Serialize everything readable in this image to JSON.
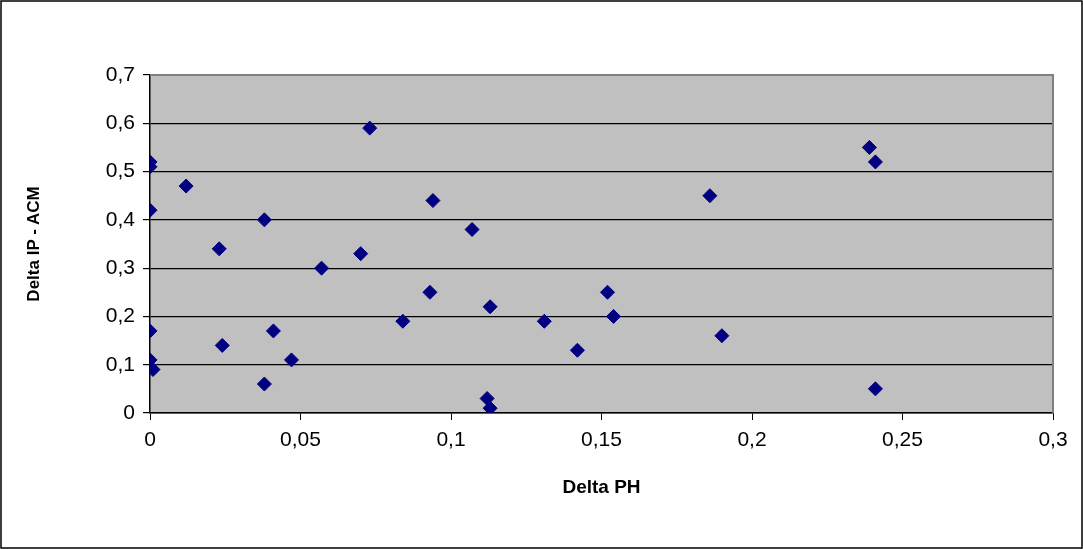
{
  "chart_data": {
    "type": "scatter",
    "xlabel": "Delta PH",
    "ylabel": "Delta IP - ACM",
    "x": [
      0,
      0,
      0,
      0,
      0,
      0.001,
      0.012,
      0.023,
      0.024,
      0.038,
      0.038,
      0.041,
      0.047,
      0.057,
      0.07,
      0.073,
      0.084,
      0.093,
      0.094,
      0.107,
      0.112,
      0.113,
      0.113,
      0.131,
      0.142,
      0.152,
      0.154,
      0.186,
      0.19,
      0.239,
      0.241,
      0.241
    ],
    "series": [
      {
        "color": "#000080",
        "values": [
          0.52,
          0.51,
          0.42,
          0.17,
          0.11,
          0.09,
          0.47,
          0.34,
          0.14,
          0.4,
          0.06,
          0.17,
          0.11,
          0.3,
          0.33,
          0.59,
          0.19,
          0.25,
          0.44,
          0.38,
          0.03,
          0.01,
          0.22,
          0.19,
          0.13,
          0.25,
          0.2,
          0.45,
          0.16,
          0.55,
          0.52,
          0.05
        ]
      }
    ],
    "xlim": [
      0,
      0.3
    ],
    "ylim": [
      0,
      0.7
    ],
    "xticks": [
      0,
      {
        "value": 0.05,
        "label": "0,05"
      },
      {
        "value": 0.1,
        "label": "0,1"
      },
      {
        "value": 0.15,
        "label": "0,15"
      },
      {
        "value": 0.2,
        "label": "0,2"
      },
      {
        "value": 0.25,
        "label": "0,25"
      },
      {
        "value": 0.3,
        "label": "0,3"
      }
    ],
    "yticks": [
      0,
      {
        "value": 0.1,
        "label": "0,1"
      },
      {
        "value": 0.2,
        "label": "0,2"
      },
      {
        "value": 0.3,
        "label": "0,3"
      },
      {
        "value": 0.4,
        "label": "0,4"
      },
      {
        "value": 0.5,
        "label": "0,5"
      },
      {
        "value": 0.6,
        "label": "0,6"
      },
      {
        "value": 0.7,
        "label": "0,7"
      }
    ],
    "grid": "y",
    "marker": "diamond",
    "legend": false
  }
}
